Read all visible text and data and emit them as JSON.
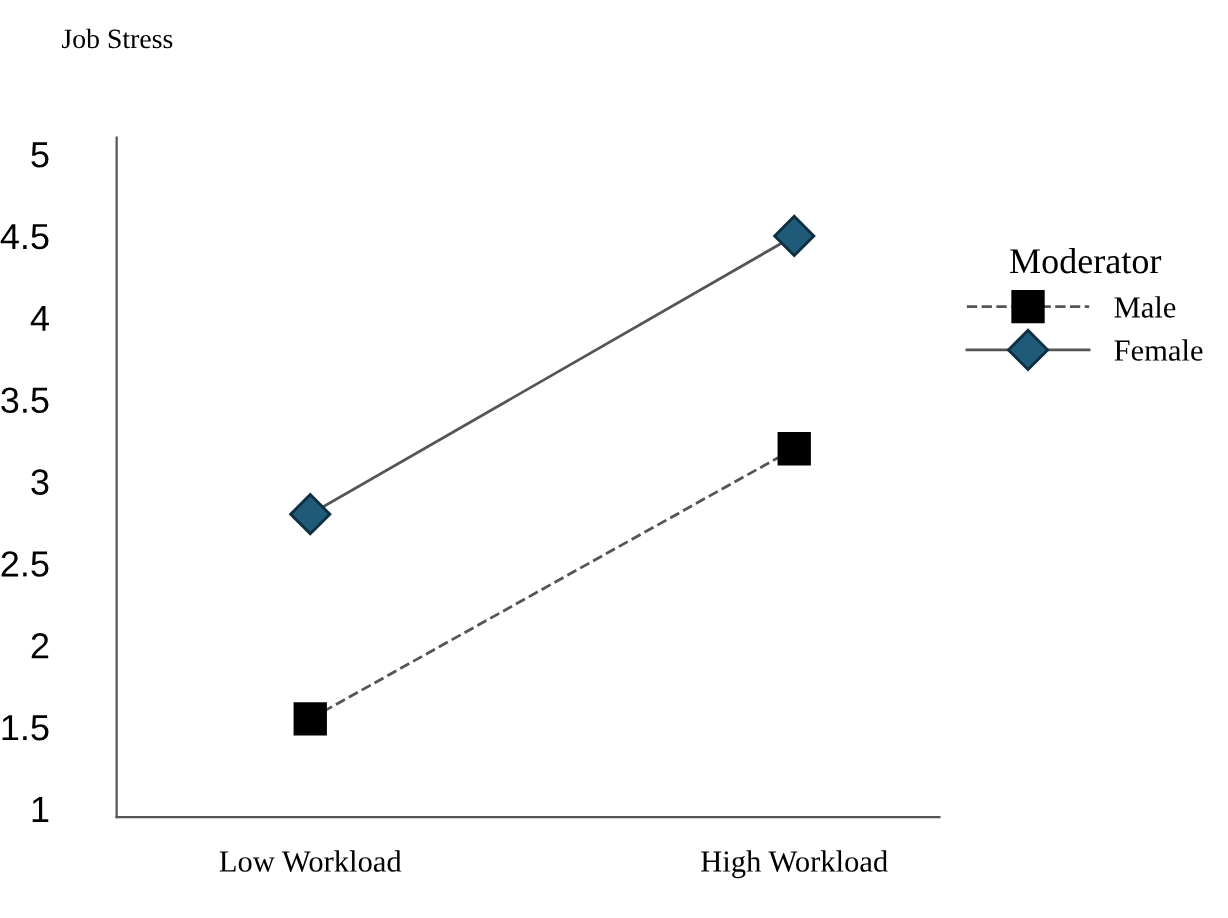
{
  "chart_data": {
    "type": "line",
    "ylabel": "Job Stress",
    "categories": [
      "Low Workload",
      "High Workload"
    ],
    "series": [
      {
        "name": "Male",
        "color": "#000000",
        "values": [
          1.55,
          3.2
        ],
        "marker": "square",
        "line_style": "dashed"
      },
      {
        "name": "Female",
        "color": "#1f5a78",
        "values": [
          2.8,
          4.5
        ],
        "marker": "diamond",
        "line_style": "solid"
      }
    ],
    "legend_title": "Moderator",
    "legend": "right",
    "ylim": [
      0.95,
      5.1
    ],
    "yticks": [
      1,
      1.5,
      2,
      2.5,
      3,
      3.5,
      4,
      4.5,
      5
    ],
    "grid": false
  }
}
